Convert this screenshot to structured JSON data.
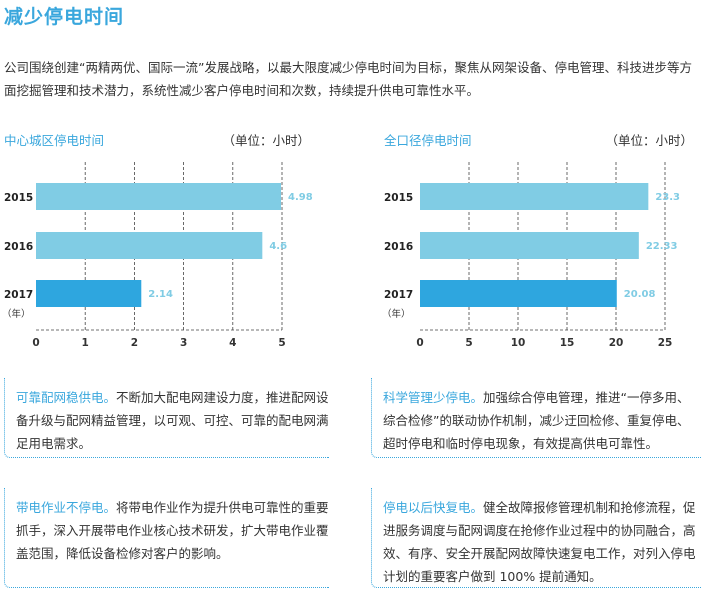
{
  "title": "减少停电时间",
  "intro": "公司围绕创建“两精两优、国际一流”发展战略，以最大限度减少停电时间为目标，聚焦从网架设备、停电管理、科技进步等方面挖掘管理和技术潜力，系统性减少客户停电时间和次数，持续提升供电可靠性水平。",
  "colors": {
    "accent": "#3aa7dd",
    "bar_light": "#80cce4",
    "bar_dark": "#2ea6df"
  },
  "chart_data": [
    {
      "type": "bar",
      "orientation": "horizontal",
      "title": "中心城区停电时间",
      "unit": "（单位：小时）",
      "categories": [
        "2015",
        "2016",
        "2017"
      ],
      "category_unit": "（年）",
      "values": [
        4.98,
        4.6,
        2.14
      ],
      "labels": [
        "4.98",
        "4.6",
        "2.14"
      ],
      "xlim": [
        0,
        5
      ],
      "ticks": [
        "0",
        "1",
        "2",
        "3",
        "4",
        "5"
      ],
      "tick_values": [
        0,
        1,
        2,
        3,
        4,
        5
      ],
      "grid": true
    },
    {
      "type": "bar",
      "orientation": "horizontal",
      "title": "全口径停电时间",
      "unit": "（单位：小时）",
      "categories": [
        "2015",
        "2016",
        "2017"
      ],
      "category_unit": "（年）",
      "values": [
        23.3,
        22.33,
        20.08
      ],
      "labels": [
        "23.3",
        "22.33",
        "20.08"
      ],
      "xlim": [
        0,
        25
      ],
      "ticks": [
        "0",
        "5",
        "10",
        "15",
        "20",
        "25"
      ],
      "tick_values": [
        0,
        5,
        10,
        15,
        20,
        25
      ],
      "grid": true
    }
  ],
  "boxes": [
    {
      "head": "可靠配网稳供电。",
      "body": "不断加大配电网建设力度，推进配网设备升级与配网精益管理，以可观、可控、可靠的配电网满足用电需求。"
    },
    {
      "head": "科学管理少停电。",
      "body": "加强综合停电管理，推进“一停多用、综合检修”的联动协作机制，减少迂回检修、重复停电、超时停电和临时停电现象，有效提高供电可靠性。"
    },
    {
      "head": "带电作业不停电。",
      "body": "将带电作业作为提升供电可靠性的重要抓手，深入开展带电作业核心技术研发，扩大带电作业覆盖范围，降低设备检修对客户的影响。"
    },
    {
      "head": "停电以后快复电。",
      "body": "健全故障报修管理机制和抢修流程，促进服务调度与配网调度在抢修作业过程中的协同融合，高效、有序、安全开展配网故障快速复电工作，对列入停电计划的重要客户做到 100% 提前通知。"
    }
  ]
}
